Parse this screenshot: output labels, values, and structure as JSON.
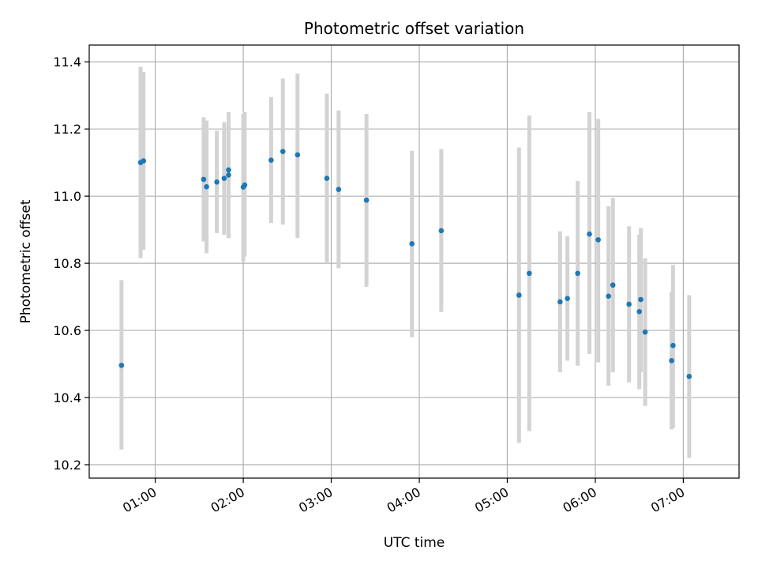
{
  "chart_data": {
    "type": "scatter",
    "title": "Photometric offset variation",
    "xlabel": "UTC time",
    "ylabel": "Photometric offset",
    "x_tick_labels": [
      "01:00",
      "02:00",
      "03:00",
      "04:00",
      "05:00",
      "06:00",
      "07:00"
    ],
    "y_tick_labels": [
      "10.2",
      "10.4",
      "10.6",
      "10.8",
      "11.0",
      "11.2",
      "11.4"
    ],
    "xlim": [
      "00:15",
      "07:38"
    ],
    "ylim": [
      10.16,
      11.45
    ],
    "grid": true,
    "colors": {
      "point": "#1f77b4",
      "errorbar": "#d3d3d3",
      "grid": "#b0b0b0"
    },
    "points": [
      {
        "x": "00:37",
        "y": 10.496,
        "lo": 10.245,
        "hi": 10.75
      },
      {
        "x": "00:50",
        "y": 11.1,
        "lo": 10.815,
        "hi": 11.385
      },
      {
        "x": "00:52",
        "y": 11.105,
        "lo": 10.84,
        "hi": 11.37
      },
      {
        "x": "01:33",
        "y": 11.05,
        "lo": 10.865,
        "hi": 11.235
      },
      {
        "x": "01:35",
        "y": 11.028,
        "lo": 10.83,
        "hi": 11.225
      },
      {
        "x": "01:42",
        "y": 11.042,
        "lo": 10.89,
        "hi": 11.195
      },
      {
        "x": "01:47",
        "y": 11.053,
        "lo": 10.885,
        "hi": 11.22
      },
      {
        "x": "01:50",
        "y": 11.063,
        "lo": 10.875,
        "hi": 11.25
      },
      {
        "x": "01:50",
        "y": 11.078,
        "lo": 10.93,
        "hi": 11.23
      },
      {
        "x": "02:00",
        "y": 11.027,
        "lo": 10.805,
        "hi": 11.245
      },
      {
        "x": "02:01",
        "y": 11.033,
        "lo": 10.82,
        "hi": 11.25
      },
      {
        "x": "02:19",
        "y": 11.107,
        "lo": 10.92,
        "hi": 11.295
      },
      {
        "x": "02:27",
        "y": 11.133,
        "lo": 10.915,
        "hi": 11.35
      },
      {
        "x": "02:37",
        "y": 11.123,
        "lo": 10.875,
        "hi": 11.365
      },
      {
        "x": "02:57",
        "y": 11.053,
        "lo": 10.8,
        "hi": 11.305
      },
      {
        "x": "03:05",
        "y": 11.02,
        "lo": 10.785,
        "hi": 11.255
      },
      {
        "x": "03:24",
        "y": 10.988,
        "lo": 10.73,
        "hi": 11.245
      },
      {
        "x": "03:55",
        "y": 10.858,
        "lo": 10.58,
        "hi": 11.135
      },
      {
        "x": "04:15",
        "y": 10.897,
        "lo": 10.655,
        "hi": 11.14
      },
      {
        "x": "05:08",
        "y": 10.705,
        "lo": 10.265,
        "hi": 11.145
      },
      {
        "x": "05:15",
        "y": 10.77,
        "lo": 10.3,
        "hi": 11.24
      },
      {
        "x": "05:36",
        "y": 10.685,
        "lo": 10.475,
        "hi": 10.895
      },
      {
        "x": "05:41",
        "y": 10.695,
        "lo": 10.51,
        "hi": 10.88
      },
      {
        "x": "05:48",
        "y": 10.77,
        "lo": 10.495,
        "hi": 11.045
      },
      {
        "x": "05:56",
        "y": 10.887,
        "lo": 10.53,
        "hi": 11.25
      },
      {
        "x": "06:02",
        "y": 10.87,
        "lo": 10.505,
        "hi": 11.23
      },
      {
        "x": "06:09",
        "y": 10.702,
        "lo": 10.435,
        "hi": 10.97
      },
      {
        "x": "06:12",
        "y": 10.735,
        "lo": 10.475,
        "hi": 10.995
      },
      {
        "x": "06:23",
        "y": 10.678,
        "lo": 10.445,
        "hi": 10.91
      },
      {
        "x": "06:30",
        "y": 10.656,
        "lo": 10.425,
        "hi": 10.885
      },
      {
        "x": "06:31",
        "y": 10.692,
        "lo": 10.475,
        "hi": 10.905
      },
      {
        "x": "06:34",
        "y": 10.595,
        "lo": 10.375,
        "hi": 10.815
      },
      {
        "x": "06:52",
        "y": 10.51,
        "lo": 10.305,
        "hi": 10.715
      },
      {
        "x": "06:53",
        "y": 10.555,
        "lo": 10.31,
        "hi": 10.795
      },
      {
        "x": "07:04",
        "y": 10.463,
        "lo": 10.22,
        "hi": 10.705
      }
    ]
  }
}
